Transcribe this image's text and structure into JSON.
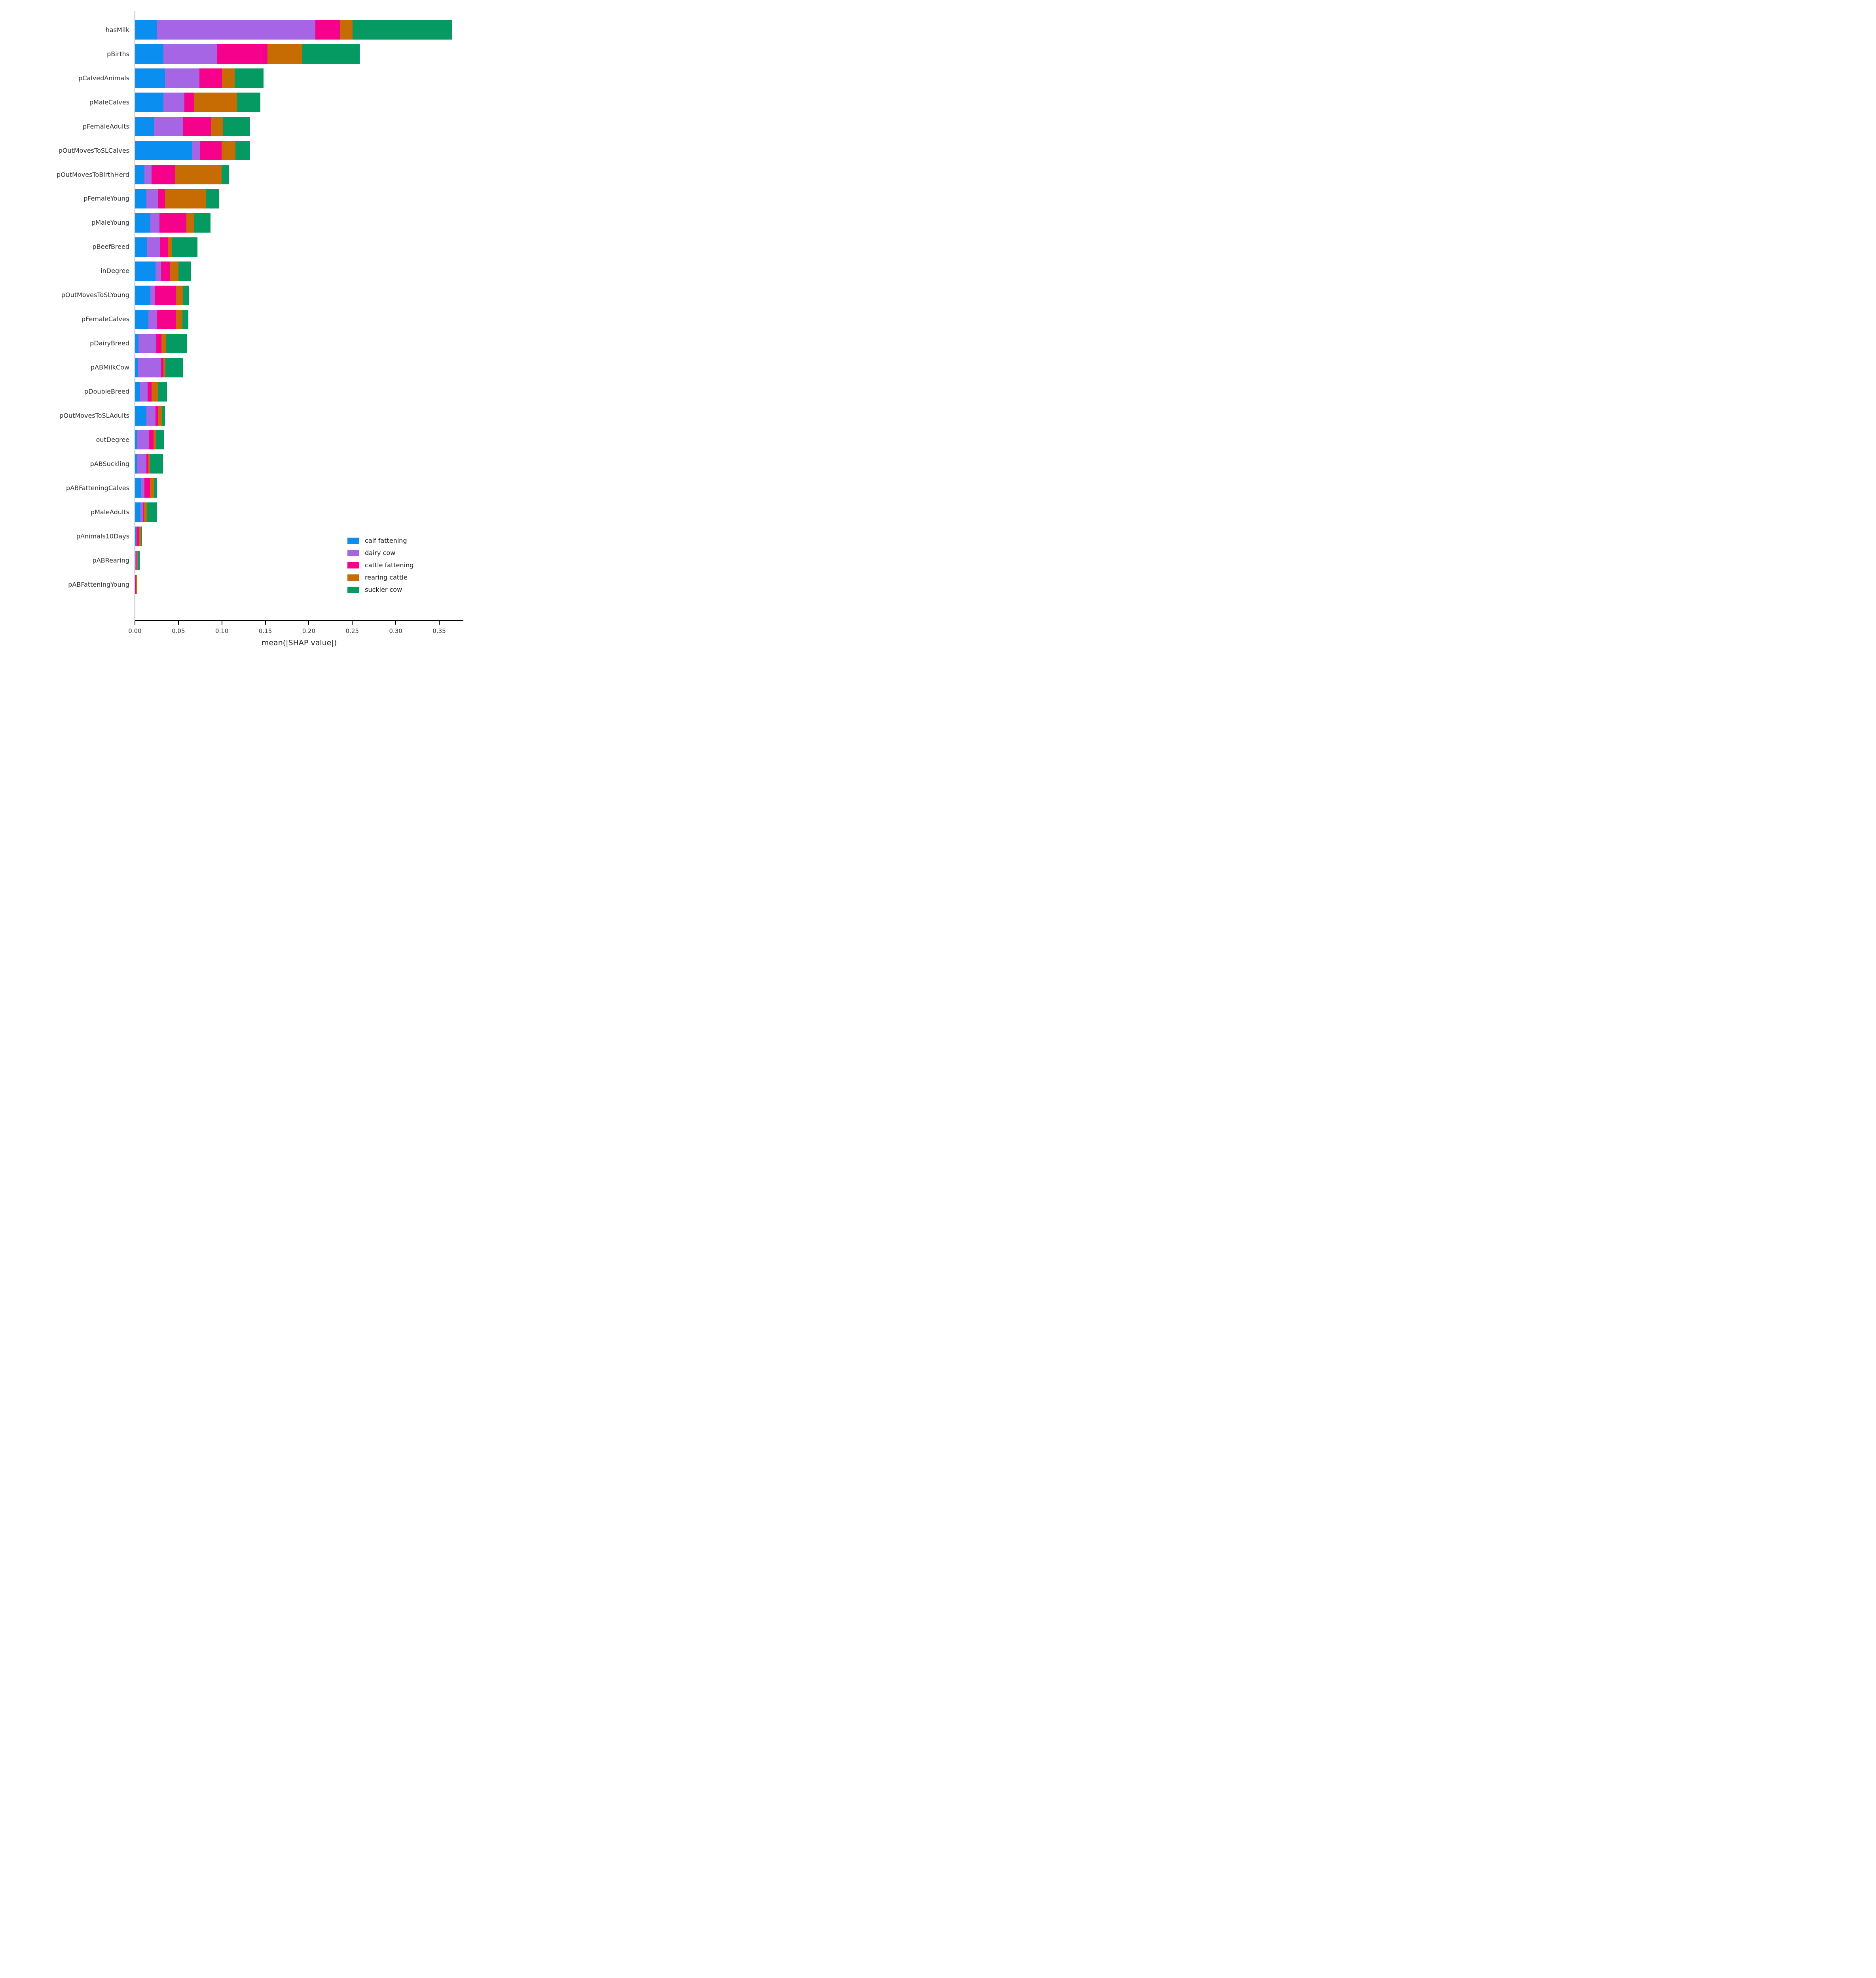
{
  "figure": {
    "title": "",
    "xlabel": "mean(|SHAP value|)",
    "x_tick_labels": [
      "0.00",
      "0.05",
      "0.10",
      "0.15",
      "0.20",
      "0.25",
      "0.30",
      "0.35"
    ],
    "accent_colors": {
      "calf_fattening": "#0a8ef0",
      "dairy_cow": "#a565e5",
      "cattle_fattening": "#f5018c",
      "rearing_cattle": "#c66c02",
      "suckler_cow": "#049a61",
      "left_spine": "#a3a3a3",
      "bottom_spine": "#000000",
      "text": "#333333"
    }
  },
  "chart_data": {
    "type": "bar",
    "stacked": true,
    "orientation": "horizontal",
    "title": "",
    "xlabel": "mean(|SHAP value|)",
    "ylabel": "",
    "grid": false,
    "legend_position": "lower right",
    "xlim": [
      0,
      0.3773
    ],
    "x_tick_values": [
      0.0,
      0.05,
      0.1,
      0.15,
      0.2,
      0.25,
      0.3,
      0.35
    ],
    "categories": [
      "hasMilk",
      "pBirths",
      "pCalvedAnimals",
      "pMaleCalves",
      "pFemaleAdults",
      "pOutMovesToSLCalves",
      "pOutMovesToBirthHerd",
      "pFemaleYoung",
      "pMaleYoung",
      "pBeefBreed",
      "inDegree",
      "pOutMovesToSLYoung",
      "pFemaleCalves",
      "pDairyBreed",
      "pABMilkCow",
      "pDoubleBreed",
      "pOutMovesToSLAdults",
      "outDegree",
      "pABSuckling",
      "pABFatteningCalves",
      "pMaleAdults",
      "pAnimals10Days",
      "pABRearing",
      "pABFatteningYoung"
    ],
    "series": [
      {
        "name": "calf fattening",
        "color": "#0a8ef0",
        "values": [
          0.025,
          0.0326,
          0.0344,
          0.0327,
          0.0219,
          0.0659,
          0.0108,
          0.0133,
          0.0178,
          0.0138,
          0.0237,
          0.0178,
          0.0153,
          0.004,
          0.0037,
          0.0056,
          0.013,
          0.0026,
          0.0028,
          0.0072,
          0.0062,
          0.0008,
          0.0005,
          0.0004
        ]
      },
      {
        "name": "dairy cow",
        "color": "#a565e5",
        "values": [
          0.1825,
          0.0614,
          0.0398,
          0.0244,
          0.0338,
          0.0092,
          0.0083,
          0.0132,
          0.0105,
          0.0155,
          0.0062,
          0.0053,
          0.0099,
          0.0207,
          0.0262,
          0.0089,
          0.0109,
          0.0136,
          0.0103,
          0.0035,
          0.0027,
          0.0012,
          0.0013,
          0.0001
        ]
      },
      {
        "name": "cattle fattening",
        "color": "#f5018c",
        "values": [
          0.0284,
          0.0583,
          0.0261,
          0.011,
          0.0318,
          0.0244,
          0.0268,
          0.0083,
          0.0309,
          0.0086,
          0.0106,
          0.0244,
          0.0219,
          0.0056,
          0.0029,
          0.0047,
          0.0031,
          0.0052,
          0.0025,
          0.0066,
          0.0012,
          0.0027,
          0.0006,
          0.001
        ]
      },
      {
        "name": "rearing cattle",
        "color": "#c66c02",
        "values": [
          0.0145,
          0.0402,
          0.0144,
          0.0495,
          0.0134,
          0.0159,
          0.0539,
          0.047,
          0.0092,
          0.0051,
          0.0095,
          0.0076,
          0.0077,
          0.0058,
          0.0021,
          0.0072,
          0.0038,
          0.0029,
          0.0016,
          0.0046,
          0.0034,
          0.0026,
          0.0012,
          0.0006
        ]
      },
      {
        "name": "suckler cow",
        "color": "#049a61",
        "values": [
          0.1145,
          0.0662,
          0.0332,
          0.0267,
          0.0313,
          0.0166,
          0.0085,
          0.015,
          0.0187,
          0.0288,
          0.0146,
          0.0071,
          0.0067,
          0.0242,
          0.0208,
          0.0103,
          0.0037,
          0.0093,
          0.0151,
          0.0034,
          0.0116,
          0.001,
          0.002,
          0.0005
        ]
      }
    ]
  }
}
